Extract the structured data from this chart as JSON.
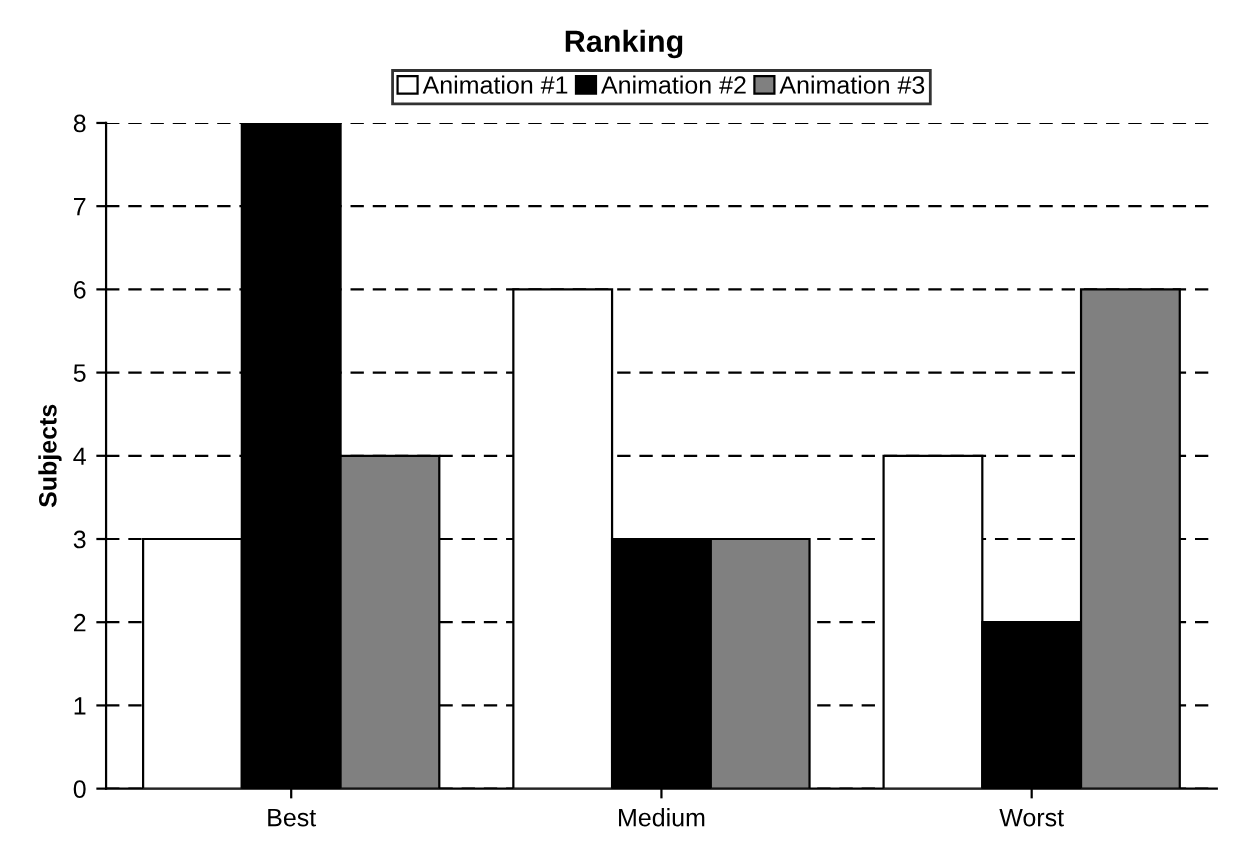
{
  "chart_data": {
    "type": "bar",
    "title": "Ranking",
    "ylabel": "Subjects",
    "categories": [
      "Best",
      "Medium",
      "Worst"
    ],
    "series": [
      {
        "name": "Animation #1",
        "color": "#ffffff",
        "values": [
          3,
          6,
          4
        ]
      },
      {
        "name": "Animation #2",
        "color": "#000000",
        "values": [
          8,
          3,
          2
        ]
      },
      {
        "name": "Animation #3",
        "color": "#808080",
        "values": [
          4,
          3,
          6
        ]
      }
    ],
    "ylim": [
      0,
      8
    ],
    "yticks": [
      0,
      1,
      2,
      3,
      4,
      5,
      6,
      7,
      8
    ],
    "grid": "y",
    "line_style": "dashed",
    "legend": "top"
  }
}
